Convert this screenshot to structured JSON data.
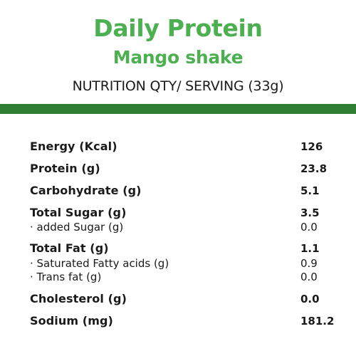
{
  "colors": {
    "accent": "#4caf50",
    "bar": "#2e7d32",
    "text": "#1a1a1a",
    "background": "#ffffff"
  },
  "header": {
    "title": "Daily Protein",
    "subtitle": "Mango shake",
    "serving": "NUTRITION QTY/ SERVING (33g)"
  },
  "nutrients": [
    {
      "label": "Energy (Kcal)",
      "value": "126"
    },
    {
      "label": "Protein (g)",
      "value": "23.8"
    },
    {
      "label": "Carbohydrate (g)",
      "value": "5.1"
    },
    {
      "label": "Total Sugar (g)",
      "value": "3.5"
    },
    {
      "label": "· added Sugar (g)",
      "value": "0.0"
    },
    {
      "label": "Total Fat (g)",
      "value": "1.1"
    },
    {
      "label": "· Saturated Fatty acids (g)",
      "value": "0.9"
    },
    {
      "label": "· Trans fat (g)",
      "value": "0.0"
    },
    {
      "label": "Cholesterol (g)",
      "value": "0.0"
    },
    {
      "label": "Sodium (mg)",
      "value": "181.2"
    }
  ]
}
